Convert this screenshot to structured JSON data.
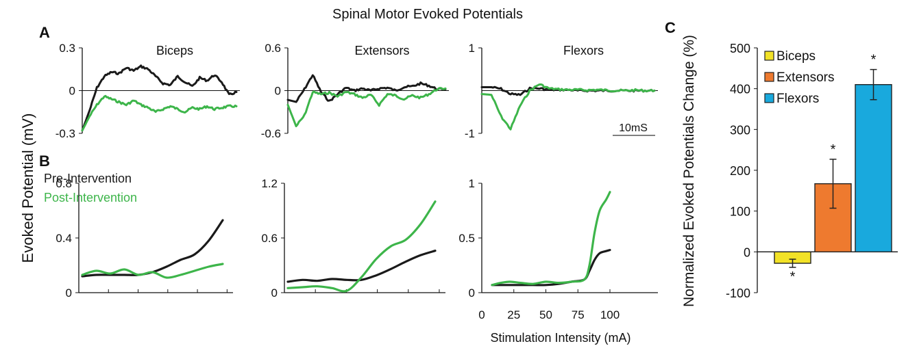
{
  "figure": {
    "title": "Spinal Motor Evoked Potentials",
    "panel_labels": {
      "a": "A",
      "b": "B",
      "c": "C"
    },
    "ylabel_shared": "Evoked Potential (mV)",
    "scale_bar_label": "10mS",
    "xlabel_b": "Stimulation Intensity (mA)",
    "legend_b": {
      "pre": "Pre-Intervention",
      "post": "Post-Intervention"
    },
    "colors": {
      "pre": "#1a1a1a",
      "post": "#3db54a",
      "biceps": "#f2e227",
      "extensors": "#ee7a2f",
      "flexors": "#19a9dd"
    }
  },
  "chart_data": [
    {
      "panel": "A",
      "type": "line",
      "title": "Biceps",
      "y_ticks": [
        "0.3",
        "0",
        "-0.3"
      ],
      "ylim": [
        -0.3,
        0.3
      ],
      "series": [
        {
          "key": "pre",
          "values": [
            -0.28,
            -0.14,
            0.02,
            0.1,
            0.13,
            0.12,
            0.16,
            0.14,
            0.17,
            0.15,
            0.1,
            0.05,
            0.04,
            0.1,
            0.06,
            0.03,
            0.09,
            0.07,
            0.11,
            0.06,
            -0.03,
            -0.01
          ]
        },
        {
          "key": "post",
          "values": [
            -0.28,
            -0.18,
            -0.1,
            -0.04,
            -0.06,
            -0.08,
            -0.1,
            -0.07,
            -0.1,
            -0.12,
            -0.15,
            -0.13,
            -0.11,
            -0.13,
            -0.15,
            -0.12,
            -0.13,
            -0.11,
            -0.13,
            -0.12,
            -0.11,
            -0.11
          ]
        }
      ]
    },
    {
      "panel": "A",
      "type": "line",
      "title": "Extensors",
      "y_ticks": [
        "0.6",
        "0",
        "-0.6"
      ],
      "ylim": [
        -0.6,
        0.6
      ],
      "series": [
        {
          "key": "pre",
          "values": [
            -0.13,
            -0.16,
            0.02,
            0.22,
            -0.02,
            -0.15,
            -0.05,
            0.04,
            0.0,
            0.03,
            0.0,
            0.03,
            0.04,
            0.0,
            0.05,
            0.06,
            0.1,
            0.07,
            0.02,
            0.02
          ]
        },
        {
          "key": "post",
          "values": [
            -0.2,
            -0.5,
            -0.35,
            -0.02,
            -0.05,
            -0.03,
            -0.08,
            -0.02,
            -0.05,
            -0.1,
            -0.06,
            -0.2,
            -0.05,
            -0.07,
            -0.12,
            -0.07,
            -0.1,
            -0.05,
            0.02,
            0.03
          ]
        }
      ]
    },
    {
      "panel": "A",
      "type": "line",
      "title": "Flexors",
      "y_ticks": [
        "1",
        "",
        "-1"
      ],
      "ylim": [
        -1,
        1
      ],
      "series": [
        {
          "key": "pre",
          "values": [
            0.08,
            0.08,
            0.04,
            -0.08,
            -0.1,
            0.05,
            0.05,
            0.02,
            0.02,
            0.02,
            0.0,
            0.0,
            0.0,
            0.0,
            0.0,
            0.0,
            0.0,
            0.0,
            0.0
          ]
        },
        {
          "key": "post",
          "values": [
            -0.08,
            -0.1,
            -0.6,
            -0.9,
            -0.35,
            0.0,
            0.15,
            0.05,
            0.03,
            0.02,
            0.02,
            0.01,
            0.02,
            0.01,
            0.0,
            0.0,
            0.01,
            0.0,
            0.0
          ]
        }
      ]
    },
    {
      "panel": "B",
      "type": "line",
      "title": "Biceps",
      "y_ticks": [
        "0.8",
        "0.4",
        "0"
      ],
      "ylim": [
        0,
        0.8
      ],
      "x": [
        0,
        10,
        20,
        30,
        40,
        50,
        60,
        70,
        80,
        90,
        100
      ],
      "series": [
        {
          "key": "pre",
          "values": [
            0.12,
            0.13,
            0.13,
            0.13,
            0.13,
            0.15,
            0.19,
            0.24,
            0.28,
            0.38,
            0.53
          ]
        },
        {
          "key": "post",
          "values": [
            0.13,
            0.16,
            0.14,
            0.17,
            0.13,
            0.15,
            0.11,
            0.13,
            0.16,
            0.19,
            0.21
          ]
        }
      ]
    },
    {
      "panel": "B",
      "type": "line",
      "title": "Extensors",
      "y_ticks": [
        "1.2",
        "0.6",
        "0"
      ],
      "ylim": [
        0,
        1.2
      ],
      "x": [
        0,
        10,
        20,
        30,
        40,
        50,
        60,
        70,
        80,
        90,
        100
      ],
      "series": [
        {
          "key": "pre",
          "values": [
            0.12,
            0.14,
            0.13,
            0.15,
            0.14,
            0.14,
            0.19,
            0.26,
            0.34,
            0.41,
            0.46
          ]
        },
        {
          "key": "post",
          "values": [
            0.05,
            0.06,
            0.07,
            0.05,
            0.02,
            0.17,
            0.37,
            0.51,
            0.58,
            0.75,
            1.0
          ]
        }
      ]
    },
    {
      "panel": "B",
      "type": "line",
      "title": "Flexors",
      "y_ticks": [
        "1",
        "0.5",
        "0"
      ],
      "ylim": [
        0,
        1
      ],
      "x_ticks": [
        "0",
        "25",
        "50",
        "75",
        "100"
      ],
      "xlim": [
        0,
        100
      ],
      "x": [
        8,
        15,
        22,
        30,
        40,
        50,
        60,
        70,
        80,
        84,
        88,
        92,
        97,
        100
      ],
      "series": [
        {
          "key": "pre",
          "values": [
            0.07,
            0.07,
            0.07,
            0.07,
            0.07,
            0.07,
            0.08,
            0.1,
            0.12,
            0.2,
            0.3,
            0.36,
            0.38,
            0.39
          ]
        },
        {
          "key": "post",
          "values": [
            0.07,
            0.09,
            0.1,
            0.09,
            0.08,
            0.1,
            0.09,
            0.1,
            0.12,
            0.25,
            0.55,
            0.75,
            0.85,
            0.92
          ]
        }
      ]
    },
    {
      "panel": "C",
      "type": "bar",
      "ylabel": "Normalized Evoked Potentials Change (%)",
      "y_ticks": [
        "500",
        "400",
        "300",
        "200",
        "100",
        "0",
        "-100"
      ],
      "ylim": [
        -100,
        500
      ],
      "categories": [
        "Biceps",
        "Extensors",
        "Flexors"
      ],
      "values": [
        -28,
        167,
        410
      ],
      "errors": [
        10,
        60,
        37
      ],
      "markers": [
        "*",
        "*",
        "*"
      ]
    }
  ]
}
